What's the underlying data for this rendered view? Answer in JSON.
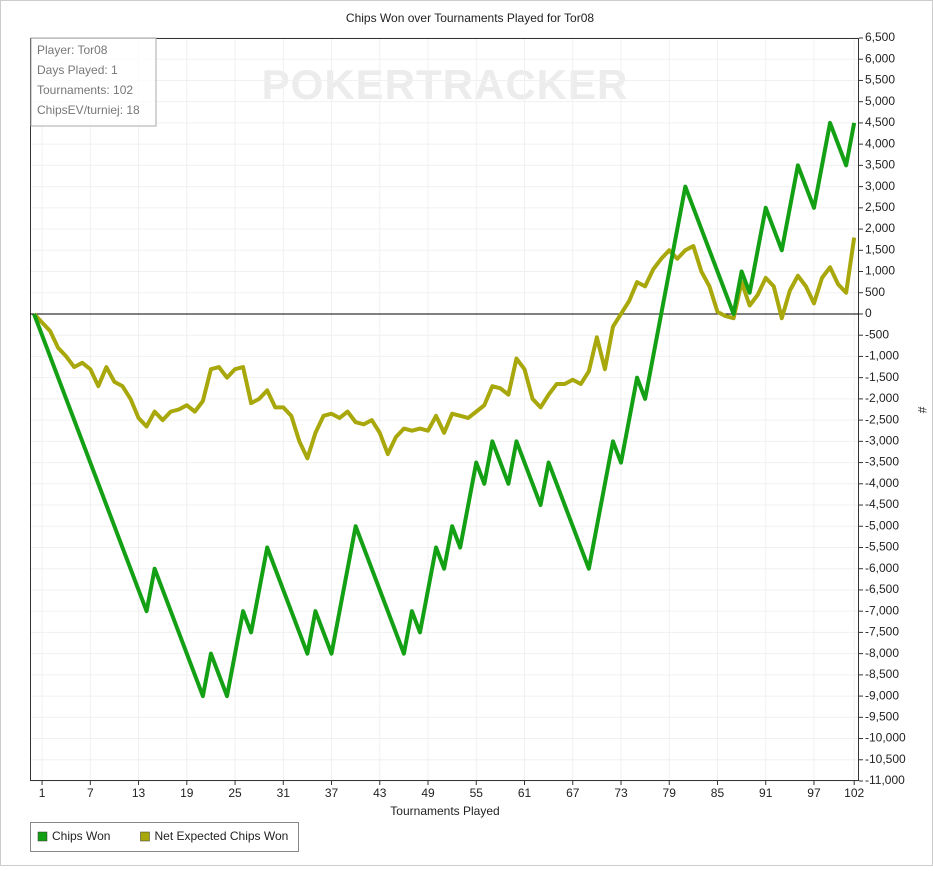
{
  "chart_data": {
    "type": "line",
    "title": "Chips Won over Tournaments Played for Tor08",
    "x_label": "Tournaments Played",
    "y_label": "#",
    "watermark": "POKERTRACKER",
    "info": [
      "Player: Tor08",
      "Days Played: 1",
      "Tournaments: 102",
      "ChipsEV/turniej: 18"
    ],
    "xlim": [
      -0.5,
      102.6
    ],
    "xticks": [
      1,
      7,
      13,
      19,
      25,
      31,
      37,
      43,
      49,
      55,
      61,
      67,
      73,
      79,
      85,
      91,
      97,
      102
    ],
    "ylim": [
      -11000,
      6500
    ],
    "yticks": [
      {
        "value": -11000,
        "label": "-11,000"
      },
      {
        "value": -10500,
        "label": "-10,500"
      },
      {
        "value": -10000,
        "label": "-10,000"
      },
      {
        "value": -9500,
        "label": "-9,500"
      },
      {
        "value": -9000,
        "label": "-9,000"
      },
      {
        "value": -8500,
        "label": "-8,500"
      },
      {
        "value": -8000,
        "label": "-8,000"
      },
      {
        "value": -7500,
        "label": "-7,500"
      },
      {
        "value": -7000,
        "label": "-7,000"
      },
      {
        "value": -6500,
        "label": "-6,500"
      },
      {
        "value": -6000,
        "label": "-6,000"
      },
      {
        "value": -5500,
        "label": "-5,500"
      },
      {
        "value": -5000,
        "label": "-5,000"
      },
      {
        "value": -4500,
        "label": "-4,500"
      },
      {
        "value": -4000,
        "label": "-4,000"
      },
      {
        "value": -3500,
        "label": "-3,500"
      },
      {
        "value": -3000,
        "label": "-3,000"
      },
      {
        "value": -2500,
        "label": "-2,500"
      },
      {
        "value": -2000,
        "label": "-2,000"
      },
      {
        "value": -1500,
        "label": "-1,500"
      },
      {
        "value": -1000,
        "label": "-1,000"
      },
      -500,
      0,
      500,
      {
        "value": 1000,
        "label": "1,000"
      },
      {
        "value": 1500,
        "label": "1,500"
      },
      {
        "value": 2000,
        "label": "2,000"
      },
      {
        "value": 2500,
        "label": "2,500"
      },
      {
        "value": 3000,
        "label": "3,000"
      },
      {
        "value": 3500,
        "label": "3,500"
      },
      {
        "value": 4000,
        "label": "4,000"
      },
      {
        "value": 4500,
        "label": "4,500"
      },
      {
        "value": 5000,
        "label": "5,000"
      },
      {
        "value": 5500,
        "label": "5,500"
      },
      {
        "value": 6000,
        "label": "6,000"
      },
      {
        "value": 6500,
        "label": "6,500"
      }
    ],
    "grid": true,
    "series": [
      {
        "name": "Chips Won",
        "color": "#14a014",
        "x": [
          0,
          14,
          15,
          21,
          22,
          24,
          26,
          27,
          29,
          34,
          35,
          37,
          40,
          46,
          47,
          48,
          50,
          51,
          52,
          53,
          55,
          56,
          57,
          59,
          60,
          63,
          64,
          69,
          72,
          73,
          75,
          76,
          81,
          87,
          88,
          89,
          91,
          93,
          95,
          97,
          99,
          101,
          102
        ],
        "values": [
          0,
          -7000,
          -6000,
          -9000,
          -8000,
          -9000,
          -7000,
          -7500,
          -5500,
          -8000,
          -7000,
          -8000,
          -5000,
          -8000,
          -7000,
          -7500,
          -5500,
          -6000,
          -5000,
          -5500,
          -3500,
          -4000,
          -3000,
          -4000,
          -3000,
          -4500,
          -3500,
          -6000,
          -3000,
          -3500,
          -1500,
          -2000,
          3000,
          0,
          1000,
          500,
          2500,
          1500,
          3500,
          2500,
          4500,
          3500,
          4500
        ]
      },
      {
        "name": "Net Expected Chips Won",
        "color": "#a8a80c",
        "x": [
          0,
          1,
          2,
          3,
          4,
          5,
          6,
          7,
          8,
          9,
          10,
          11,
          12,
          13,
          14,
          15,
          16,
          17,
          18,
          19,
          20,
          21,
          22,
          23,
          24,
          25,
          26,
          27,
          28,
          29,
          30,
          31,
          32,
          33,
          34,
          35,
          36,
          37,
          38,
          39,
          40,
          41,
          42,
          43,
          44,
          45,
          46,
          47,
          48,
          49,
          50,
          51,
          52,
          53,
          54,
          55,
          56,
          57,
          58,
          59,
          60,
          61,
          62,
          63,
          64,
          65,
          66,
          67,
          68,
          69,
          70,
          71,
          72,
          73,
          74,
          75,
          76,
          77,
          78,
          79,
          80,
          81,
          82,
          83,
          84,
          85,
          86,
          87,
          88,
          89,
          90,
          91,
          92,
          93,
          94,
          95,
          96,
          97,
          98,
          99,
          100,
          101,
          102
        ],
        "values": [
          0,
          -200,
          -400,
          -800,
          -1000,
          -1250,
          -1150,
          -1300,
          -1700,
          -1250,
          -1600,
          -1700,
          -2000,
          -2450,
          -2650,
          -2300,
          -2500,
          -2300,
          -2250,
          -2150,
          -2300,
          -2050,
          -1300,
          -1250,
          -1500,
          -1300,
          -1250,
          -2100,
          -2000,
          -1800,
          -2200,
          -2200,
          -2400,
          -3000,
          -3400,
          -2800,
          -2400,
          -2350,
          -2450,
          -2300,
          -2550,
          -2600,
          -2500,
          -2800,
          -3300,
          -2900,
          -2700,
          -2750,
          -2700,
          -2750,
          -2400,
          -2800,
          -2350,
          -2400,
          -2450,
          -2300,
          -2150,
          -1700,
          -1750,
          -1900,
          -1050,
          -1300,
          -2000,
          -2200,
          -1900,
          -1650,
          -1650,
          -1550,
          -1650,
          -1350,
          -550,
          -1300,
          -300,
          0,
          300,
          750,
          650,
          1050,
          1300,
          1500,
          1300,
          1500,
          1600,
          1000,
          650,
          50,
          -50,
          -100,
          750,
          200,
          450,
          850,
          650,
          -100,
          550,
          900,
          650,
          250,
          850,
          1100,
          700,
          500,
          1800
        ]
      }
    ]
  }
}
